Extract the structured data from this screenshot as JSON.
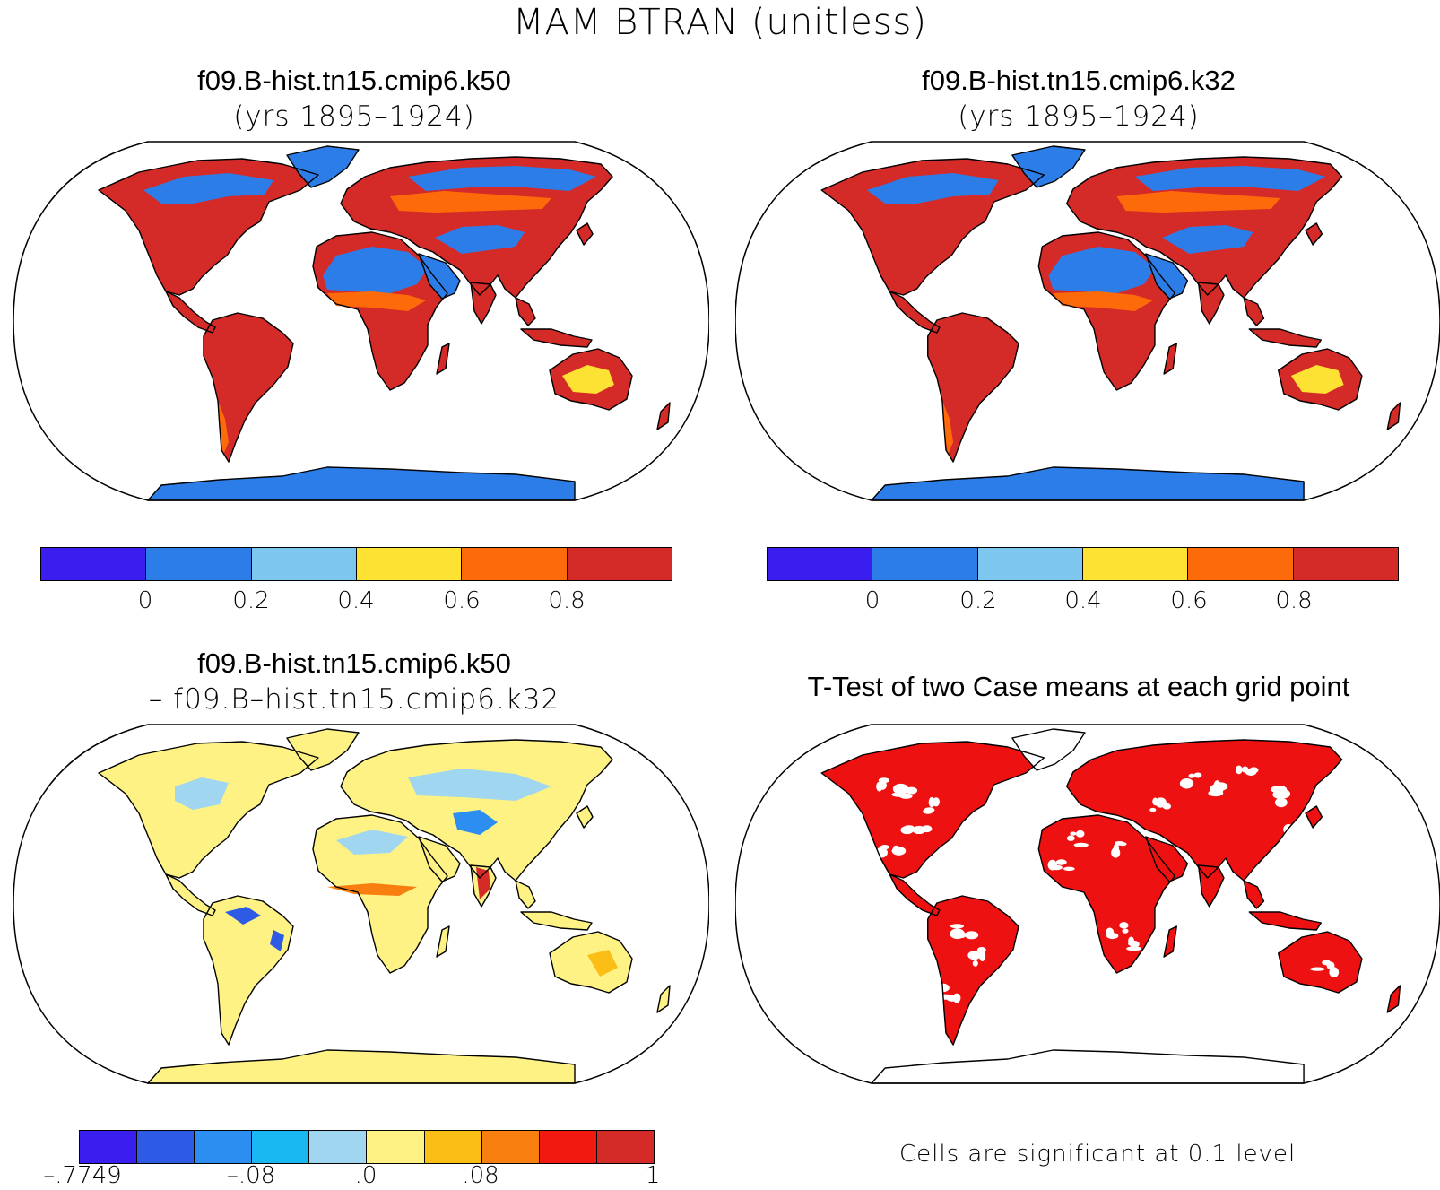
{
  "title": "MAM BTRAN (unitless)",
  "panels": [
    {
      "title1": "f09.B-hist.tn15.cmip6.k50",
      "title2": "(yrs 1895–1924)"
    },
    {
      "title1": "f09.B-hist.tn15.cmip6.k32",
      "title2": "(yrs 1895–1924)"
    },
    {
      "title1": "f09.B-hist.tn15.cmip6.k50",
      "title2": "– f09.B–hist.tn15.cmip6.k32"
    },
    {
      "title1": "T-Test of two Case means at each grid point",
      "note": "Cells are significant at 0.1 level"
    }
  ],
  "colorbar_abs": {
    "colors": [
      "#3a1ef0",
      "#2d7de8",
      "#7dc6ee",
      "#fde133",
      "#fd6a0a",
      "#d42a28"
    ],
    "labels": [
      "0",
      "0.2",
      "0.4",
      "0.6",
      "0.8"
    ]
  },
  "colorbar_diff": {
    "colors": [
      "#3a1ef0",
      "#2e5be6",
      "#2b8ef0",
      "#1ab8f2",
      "#a0d6ef",
      "#fdf283",
      "#fbbe16",
      "#f87e10",
      "#f21a10",
      "#d42a28"
    ],
    "labels": [
      "–.7749",
      "–.08",
      ".0",
      ".08",
      "1"
    ]
  },
  "map_colors": {
    "land_abs_wet": "#d42a28",
    "land_abs_dry": "#2d7de8",
    "land_diff": "#fdf283",
    "land_sig": "#ee1111",
    "ocean": "#ffffff",
    "outline": "#000000"
  }
}
